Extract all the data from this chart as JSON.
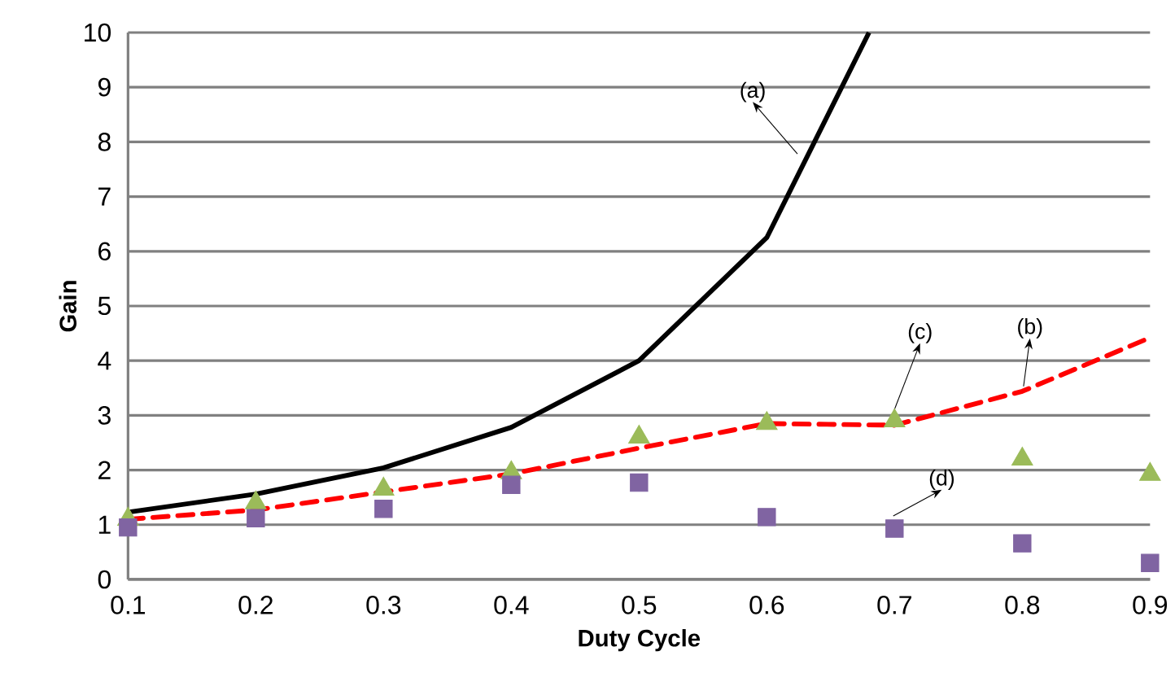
{
  "chart_data": {
    "type": "line",
    "xlabel": "Duty Cycle",
    "ylabel": "Gain",
    "x": [
      0.1,
      0.2,
      0.3,
      0.4,
      0.5,
      0.6,
      0.7,
      0.8,
      0.9
    ],
    "xlim": [
      0.1,
      0.9
    ],
    "xticks": [
      0.1,
      0.2,
      0.3,
      0.4,
      0.5,
      0.6,
      0.7,
      0.8,
      0.9
    ],
    "ylim": [
      0,
      10
    ],
    "yticks": [
      0,
      1,
      2,
      3,
      4,
      5,
      6,
      7,
      8,
      9,
      10
    ],
    "grid": "y",
    "series": [
      {
        "color": "#000000",
        "line_style": "solid",
        "marker": "none",
        "x": [
          0.1,
          0.2,
          0.3,
          0.4,
          0.5,
          0.6,
          0.68
        ],
        "values": [
          1.23,
          1.56,
          2.04,
          2.78,
          4,
          6.25,
          10
        ]
      },
      {
        "color": "#ff0000",
        "line_style": "dashed",
        "marker": "none",
        "values": [
          1.1,
          1.27,
          1.6,
          1.93,
          2.4,
          2.85,
          2.82,
          3.44,
          4.42
        ]
      },
      {
        "type": "scatter",
        "color": "#9bbb59",
        "marker": "triangle",
        "values": [
          1.1,
          1.4,
          1.65,
          1.95,
          2.6,
          2.85,
          2.9,
          2.2,
          1.92
        ]
      },
      {
        "type": "scatter",
        "color": "#8064a2",
        "marker": "square",
        "values": [
          0.95,
          1.12,
          1.29,
          1.73,
          1.77,
          1.14,
          0.93,
          0.66,
          0.3
        ]
      }
    ],
    "annotations": [
      {
        "text": "(a)",
        "x": 0.624,
        "y": 7.78
      },
      {
        "text": "(b)",
        "x": 0.801,
        "y": 3.53
      },
      {
        "text": "(c)",
        "x": 0.699,
        "y": 3.05
      },
      {
        "text": "(d)",
        "x": 0.699,
        "y": 1.16
      }
    ]
  }
}
